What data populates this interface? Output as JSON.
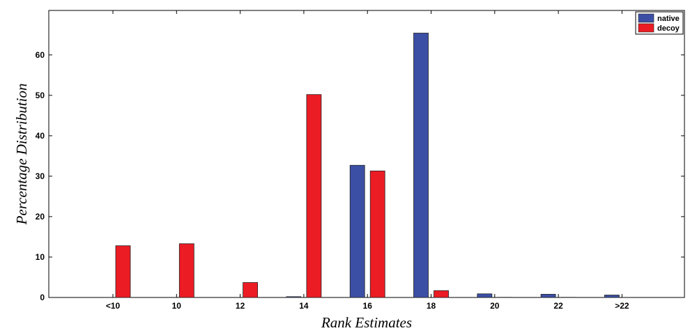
{
  "chart_data": {
    "type": "bar",
    "title": "",
    "xlabel": "Rank Estimates",
    "ylabel": "Percentage Distribution",
    "categories": [
      "<10",
      "10",
      "12",
      "14",
      "16",
      "18",
      "20",
      "22",
      ">22"
    ],
    "series": [
      {
        "name": "native",
        "color": "#3b4fa5",
        "values": [
          0,
          0,
          0,
          0.2,
          32.7,
          65.4,
          0.9,
          0.8,
          0.6
        ]
      },
      {
        "name": "decoy",
        "color": "#ec1c24",
        "values": [
          12.8,
          13.3,
          3.7,
          50.2,
          31.3,
          1.7,
          0.05,
          0.05,
          0
        ]
      }
    ],
    "ylim": [
      0,
      71
    ],
    "yticks": [
      0,
      10,
      20,
      30,
      40,
      50,
      60
    ],
    "grid": false,
    "legend_position": "top-right"
  }
}
